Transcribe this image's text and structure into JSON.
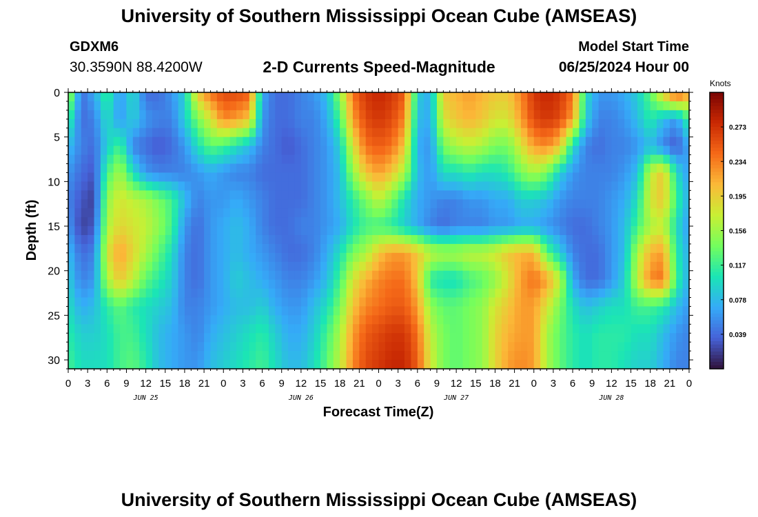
{
  "header": {
    "title": "University of Southern Mississippi Ocean Cube (AMSEAS)",
    "station": "GDXM6",
    "location": "30.3590N  88.4200W",
    "subtitle": "2-D Currents Speed-Magnitude",
    "model_start_label": "Model Start Time",
    "model_start_value": "06/25/2024 Hour 00"
  },
  "footer": {
    "title_repeat": "University of Southern Mississippi Ocean Cube (AMSEAS)"
  },
  "chart_data": {
    "type": "heatmap",
    "xlabel": "Forecast Time(Z)",
    "ylabel": "Depth (ft)",
    "colorbar_label": "Knots",
    "x_hours": [
      0,
      96
    ],
    "x_tick_step_hours": 3,
    "x_tick_labels": [
      "0",
      "3",
      "6",
      "9",
      "12",
      "15",
      "18",
      "21",
      "0",
      "3",
      "6",
      "9",
      "12",
      "15",
      "18",
      "21",
      "0",
      "3",
      "6",
      "9",
      "12",
      "15",
      "18",
      "21",
      "0",
      "3",
      "6",
      "9",
      "12",
      "15",
      "18",
      "21",
      "0"
    ],
    "date_labels": [
      {
        "label": "JUN 25",
        "hour": 12
      },
      {
        "label": "JUN 26",
        "hour": 36
      },
      {
        "label": "JUN 27",
        "hour": 60
      },
      {
        "label": "JUN 28",
        "hour": 84
      }
    ],
    "ylim": [
      0,
      31
    ],
    "y_ticks": [
      0,
      5,
      10,
      15,
      20,
      25,
      30
    ],
    "colorbar_range": [
      0.0,
      0.312
    ],
    "colorbar_ticks": [
      0.039,
      0.078,
      0.117,
      0.156,
      0.195,
      0.234,
      0.273
    ],
    "colormap": [
      "#30123b",
      "#4662d8",
      "#35abf8",
      "#1be5b5",
      "#74fe5d",
      "#c9ef34",
      "#fbb938",
      "#f56918",
      "#c92903",
      "#7a0403"
    ],
    "cell_hours": 1,
    "cell_depth_ft": 1,
    "knot_hours": [
      0,
      2,
      4,
      6,
      8,
      10,
      12,
      14,
      16,
      18,
      20,
      22,
      24,
      26,
      28,
      30,
      32,
      34,
      36,
      38,
      40,
      42,
      44,
      46,
      48,
      50,
      52,
      54,
      56,
      58,
      60,
      62,
      64,
      66,
      68,
      70,
      72,
      74,
      76,
      78,
      80,
      82,
      84,
      86,
      88,
      90,
      92,
      94,
      96
    ],
    "knot_depths": [
      0,
      3,
      6,
      9,
      12,
      15,
      18,
      21,
      24,
      27,
      31
    ],
    "values": [
      [
        0.17,
        0.04,
        0.07,
        0.12,
        0.06,
        0.1,
        0.04,
        0.04,
        0.06,
        0.09,
        0.2,
        0.24,
        0.26,
        0.26,
        0.25,
        0.07,
        0.04,
        0.04,
        0.05,
        0.06,
        0.08,
        0.15,
        0.24,
        0.27,
        0.28,
        0.27,
        0.25,
        0.09,
        0.07,
        0.2,
        0.21,
        0.22,
        0.21,
        0.2,
        0.2,
        0.23,
        0.27,
        0.28,
        0.27,
        0.24,
        0.1,
        0.06,
        0.06,
        0.07,
        0.09,
        0.13,
        0.2,
        0.26,
        0.22
      ],
      [
        0.12,
        0.04,
        0.05,
        0.1,
        0.06,
        0.09,
        0.06,
        0.05,
        0.05,
        0.09,
        0.14,
        0.18,
        0.23,
        0.22,
        0.2,
        0.06,
        0.04,
        0.04,
        0.05,
        0.05,
        0.07,
        0.12,
        0.22,
        0.26,
        0.27,
        0.26,
        0.23,
        0.08,
        0.07,
        0.18,
        0.2,
        0.21,
        0.2,
        0.18,
        0.18,
        0.22,
        0.26,
        0.27,
        0.26,
        0.22,
        0.09,
        0.05,
        0.05,
        0.06,
        0.08,
        0.11,
        0.08,
        0.06,
        0.12
      ],
      [
        0.08,
        0.05,
        0.04,
        0.09,
        0.12,
        0.05,
        0.04,
        0.03,
        0.04,
        0.06,
        0.1,
        0.13,
        0.12,
        0.1,
        0.08,
        0.05,
        0.04,
        0.03,
        0.04,
        0.05,
        0.06,
        0.09,
        0.18,
        0.24,
        0.25,
        0.24,
        0.2,
        0.07,
        0.06,
        0.14,
        0.16,
        0.17,
        0.16,
        0.14,
        0.14,
        0.18,
        0.22,
        0.23,
        0.2,
        0.1,
        0.05,
        0.04,
        0.05,
        0.05,
        0.06,
        0.08,
        0.05,
        0.03,
        0.07
      ],
      [
        0.06,
        0.04,
        0.03,
        0.12,
        0.16,
        0.1,
        0.06,
        0.05,
        0.05,
        0.05,
        0.06,
        0.07,
        0.06,
        0.05,
        0.05,
        0.04,
        0.04,
        0.04,
        0.04,
        0.05,
        0.06,
        0.08,
        0.15,
        0.2,
        0.22,
        0.2,
        0.16,
        0.08,
        0.06,
        0.1,
        0.1,
        0.11,
        0.1,
        0.1,
        0.11,
        0.14,
        0.16,
        0.14,
        0.09,
        0.06,
        0.05,
        0.05,
        0.05,
        0.06,
        0.08,
        0.17,
        0.2,
        0.1,
        0.06
      ],
      [
        0.05,
        0.03,
        0.02,
        0.15,
        0.18,
        0.17,
        0.16,
        0.14,
        0.12,
        0.08,
        0.05,
        0.06,
        0.06,
        0.07,
        0.06,
        0.05,
        0.04,
        0.04,
        0.04,
        0.05,
        0.06,
        0.08,
        0.11,
        0.14,
        0.17,
        0.14,
        0.1,
        0.07,
        0.06,
        0.05,
        0.05,
        0.06,
        0.06,
        0.07,
        0.07,
        0.09,
        0.09,
        0.08,
        0.06,
        0.05,
        0.05,
        0.05,
        0.06,
        0.07,
        0.1,
        0.18,
        0.2,
        0.12,
        0.07
      ],
      [
        0.06,
        0.02,
        0.03,
        0.16,
        0.19,
        0.18,
        0.17,
        0.15,
        0.12,
        0.06,
        0.04,
        0.06,
        0.07,
        0.08,
        0.07,
        0.05,
        0.04,
        0.04,
        0.05,
        0.05,
        0.06,
        0.07,
        0.1,
        0.12,
        0.12,
        0.11,
        0.09,
        0.07,
        0.05,
        0.04,
        0.05,
        0.05,
        0.05,
        0.06,
        0.06,
        0.07,
        0.07,
        0.06,
        0.05,
        0.04,
        0.04,
        0.05,
        0.06,
        0.08,
        0.12,
        0.16,
        0.17,
        0.1,
        0.06
      ],
      [
        0.08,
        0.04,
        0.05,
        0.18,
        0.22,
        0.19,
        0.16,
        0.13,
        0.1,
        0.05,
        0.04,
        0.06,
        0.07,
        0.08,
        0.07,
        0.06,
        0.05,
        0.04,
        0.04,
        0.05,
        0.07,
        0.1,
        0.14,
        0.16,
        0.2,
        0.22,
        0.22,
        0.2,
        0.17,
        0.16,
        0.16,
        0.17,
        0.17,
        0.18,
        0.2,
        0.21,
        0.21,
        0.13,
        0.09,
        0.05,
        0.04,
        0.04,
        0.06,
        0.08,
        0.16,
        0.21,
        0.22,
        0.11,
        0.07
      ],
      [
        0.09,
        0.05,
        0.06,
        0.16,
        0.2,
        0.17,
        0.13,
        0.11,
        0.09,
        0.05,
        0.04,
        0.06,
        0.07,
        0.09,
        0.08,
        0.07,
        0.06,
        0.05,
        0.05,
        0.06,
        0.08,
        0.12,
        0.18,
        0.21,
        0.23,
        0.24,
        0.24,
        0.2,
        0.11,
        0.1,
        0.1,
        0.12,
        0.13,
        0.15,
        0.18,
        0.22,
        0.24,
        0.22,
        0.17,
        0.07,
        0.04,
        0.04,
        0.06,
        0.09,
        0.17,
        0.23,
        0.24,
        0.12,
        0.07
      ],
      [
        0.1,
        0.07,
        0.08,
        0.11,
        0.13,
        0.11,
        0.1,
        0.09,
        0.08,
        0.05,
        0.05,
        0.06,
        0.07,
        0.08,
        0.08,
        0.09,
        0.07,
        0.06,
        0.06,
        0.08,
        0.1,
        0.14,
        0.2,
        0.23,
        0.24,
        0.25,
        0.25,
        0.22,
        0.15,
        0.13,
        0.13,
        0.14,
        0.15,
        0.18,
        0.2,
        0.22,
        0.22,
        0.18,
        0.14,
        0.1,
        0.08,
        0.09,
        0.1,
        0.1,
        0.12,
        0.12,
        0.11,
        0.08,
        0.06
      ],
      [
        0.11,
        0.09,
        0.09,
        0.1,
        0.12,
        0.12,
        0.1,
        0.08,
        0.07,
        0.06,
        0.05,
        0.07,
        0.08,
        0.09,
        0.1,
        0.11,
        0.09,
        0.07,
        0.07,
        0.09,
        0.12,
        0.16,
        0.22,
        0.25,
        0.26,
        0.27,
        0.27,
        0.24,
        0.17,
        0.14,
        0.13,
        0.14,
        0.15,
        0.19,
        0.21,
        0.22,
        0.22,
        0.16,
        0.13,
        0.11,
        0.1,
        0.11,
        0.11,
        0.11,
        0.1,
        0.1,
        0.08,
        0.06,
        0.05
      ],
      [
        0.12,
        0.1,
        0.1,
        0.1,
        0.12,
        0.13,
        0.11,
        0.08,
        0.07,
        0.06,
        0.06,
        0.08,
        0.09,
        0.1,
        0.11,
        0.12,
        0.1,
        0.08,
        0.08,
        0.1,
        0.13,
        0.17,
        0.23,
        0.26,
        0.27,
        0.28,
        0.28,
        0.25,
        0.18,
        0.14,
        0.13,
        0.14,
        0.15,
        0.19,
        0.22,
        0.23,
        0.22,
        0.16,
        0.13,
        0.11,
        0.1,
        0.11,
        0.11,
        0.1,
        0.09,
        0.09,
        0.07,
        0.05,
        0.05
      ]
    ]
  }
}
